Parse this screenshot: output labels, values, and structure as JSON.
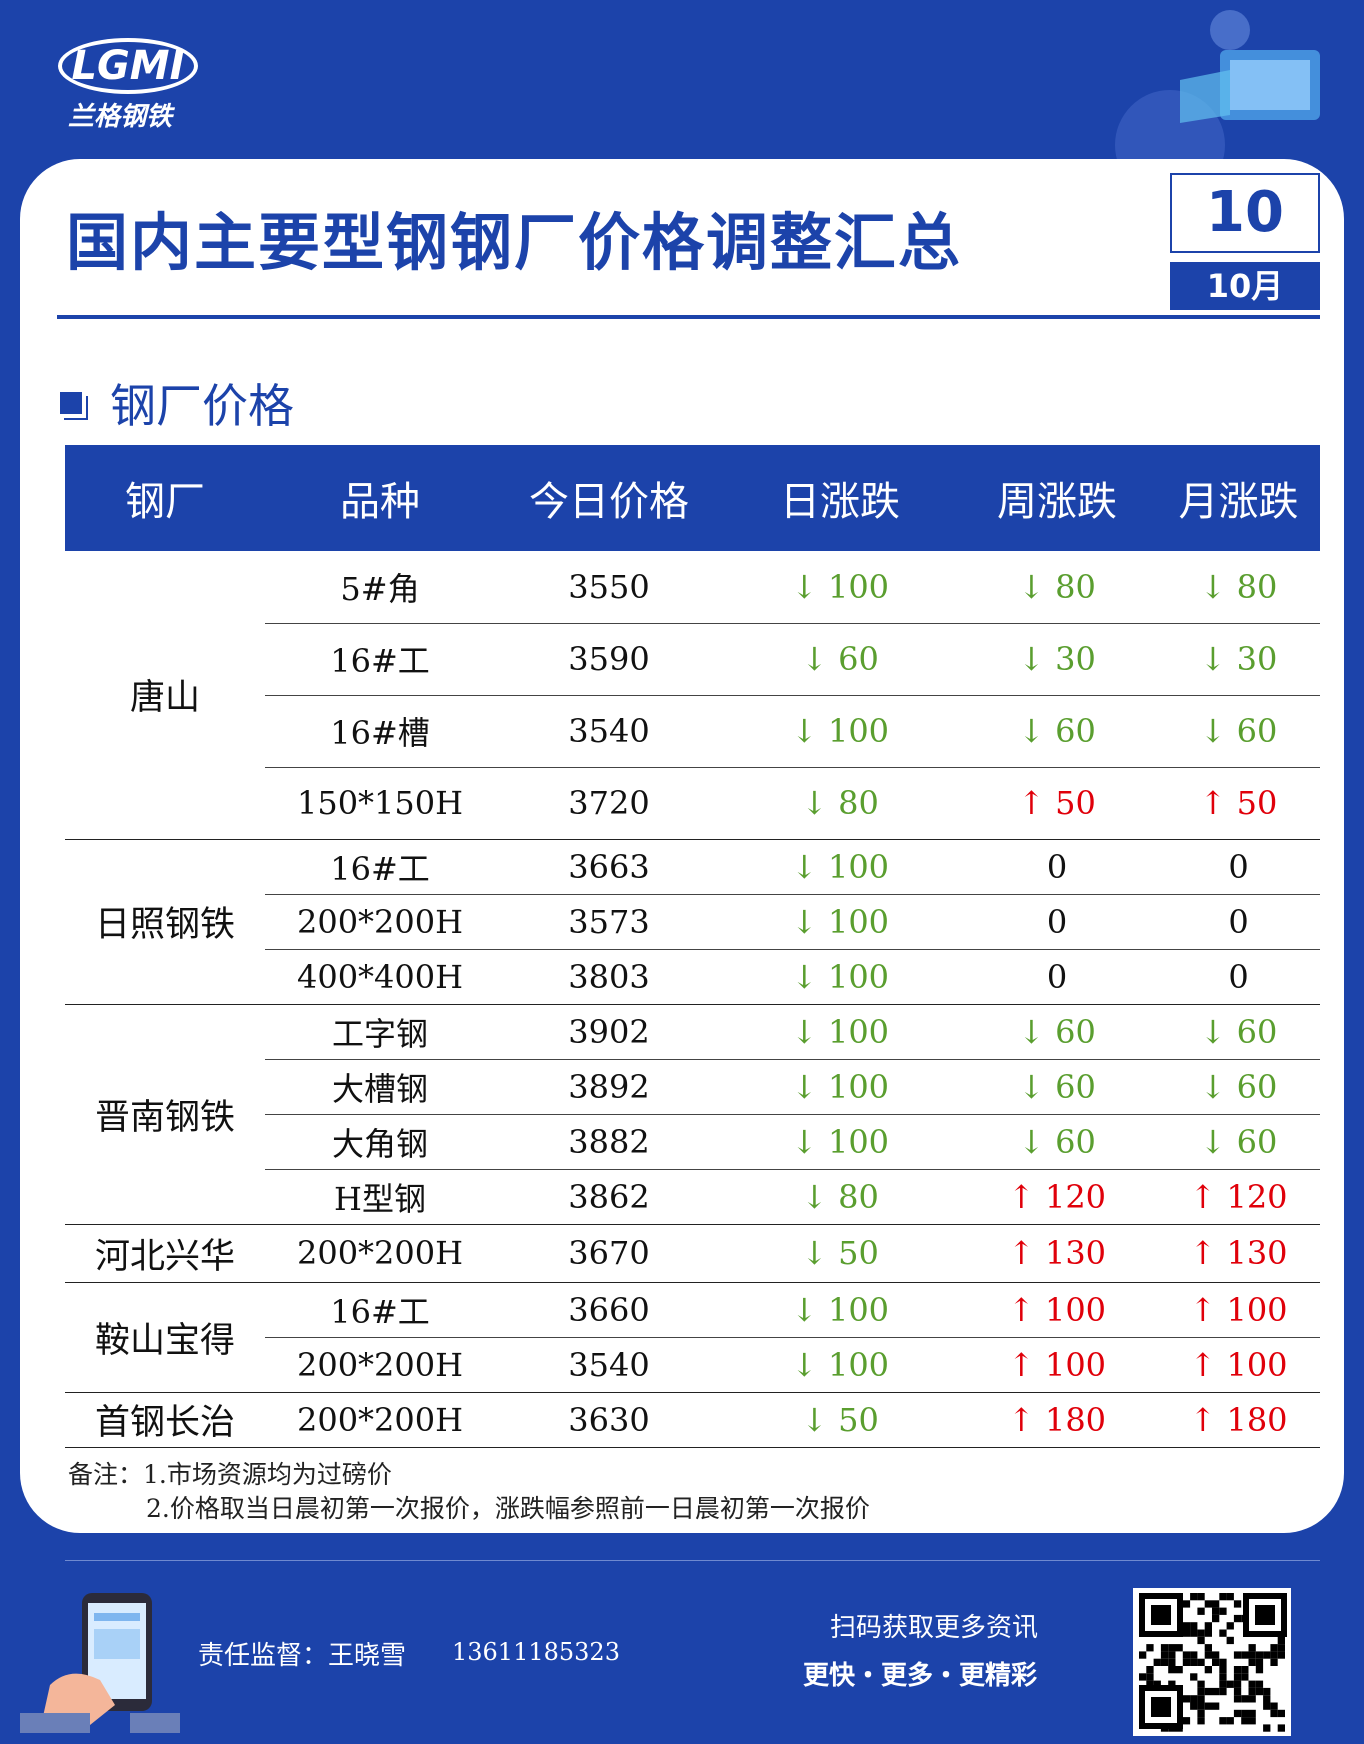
{
  "header": {
    "logo_text": "LGMI",
    "logo_subtitle": "兰格钢铁",
    "title": "国内主要型钢钢厂价格调整汇总",
    "day": "10",
    "month": "10月"
  },
  "section_title": "钢厂价格",
  "table": {
    "columns": [
      "钢厂",
      "品种",
      "今日价格",
      "日涨跌",
      "周涨跌",
      "月涨跌"
    ],
    "groups": [
      {
        "mill": "唐山",
        "rows": [
          [
            "5#角",
            "3550",
            "↓ 100",
            "↓ 80",
            "↓ 80"
          ],
          [
            "16#工",
            "3590",
            "↓ 60",
            "↓ 30",
            "↓ 30"
          ],
          [
            "16#槽",
            "3540",
            "↓ 100",
            "↓ 60",
            "↓ 60"
          ],
          [
            "150*150H",
            "3720",
            "↓ 80",
            "↑ 50",
            "↑ 50"
          ]
        ]
      },
      {
        "mill": "日照钢铁",
        "rows": [
          [
            "16#工",
            "3663",
            "↓ 100",
            "0",
            "0"
          ],
          [
            "200*200H",
            "3573",
            "↓ 100",
            "0",
            "0"
          ],
          [
            "400*400H",
            "3803",
            "↓ 100",
            "0",
            "0"
          ]
        ]
      },
      {
        "mill": "晋南钢铁",
        "rows": [
          [
            "工字钢",
            "3902",
            "↓ 100",
            "↓ 60",
            "↓ 60"
          ],
          [
            "大槽钢",
            "3892",
            "↓ 100",
            "↓ 60",
            "↓ 60"
          ],
          [
            "大角钢",
            "3882",
            "↓ 100",
            "↓ 60",
            "↓ 60"
          ],
          [
            "H型钢",
            "3862",
            "↓ 80",
            "↑ 120",
            "↑ 120"
          ]
        ]
      },
      {
        "mill": "河北兴华",
        "rows": [
          [
            "200*200H",
            "3670",
            "↓ 50",
            "↑ 130",
            "↑ 130"
          ]
        ]
      },
      {
        "mill": "鞍山宝得",
        "rows": [
          [
            "16#工",
            "3660",
            "↓ 100",
            "↑ 100",
            "↑ 100"
          ],
          [
            "200*200H",
            "3540",
            "↓ 100",
            "↑ 100",
            "↑ 100"
          ]
        ]
      },
      {
        "mill": "首钢长治",
        "rows": [
          [
            "200*200H",
            "3630",
            "↓ 50",
            "↑ 180",
            "↑ 180"
          ]
        ]
      }
    ]
  },
  "notes": [
    "备注：1.市场资源均为过磅价",
    "2.价格取当日晨初第一次报价，涨跌幅参照前一日晨初第一次报价"
  ],
  "footer": {
    "supervisor": "责任监督：王晓雪",
    "phone": "13611185323",
    "qr_caption": "扫码获取更多资讯",
    "slogan": "更快・更多・更精彩"
  }
}
